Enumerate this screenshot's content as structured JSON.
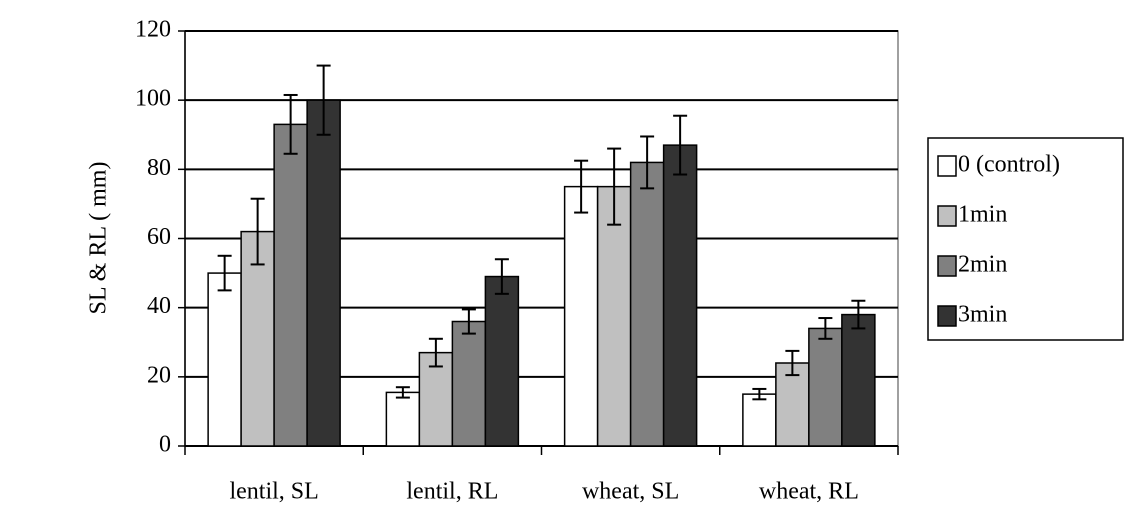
{
  "chart_data": {
    "type": "bar",
    "y_label": "SL & RL ( mm)",
    "categories": [
      "lentil, SL",
      "lentil, RL",
      "wheat, SL",
      "wheat, RL"
    ],
    "series": [
      {
        "name": "0 (control)",
        "color": "#ffffff",
        "values": [
          50,
          15.5,
          75,
          15
        ],
        "errors": [
          5,
          1.5,
          7.5,
          1.5
        ]
      },
      {
        "name": "1min",
        "color": "#c0c0c0",
        "values": [
          62,
          27,
          75,
          24
        ],
        "errors": [
          9.5,
          4,
          11,
          3.5
        ]
      },
      {
        "name": "2min",
        "color": "#808080",
        "values": [
          93,
          36,
          82,
          34
        ],
        "errors": [
          8.5,
          3.5,
          7.5,
          3
        ]
      },
      {
        "name": "3min",
        "color": "#333333",
        "values": [
          100,
          49,
          87,
          38
        ],
        "errors": [
          10,
          5,
          8.5,
          4
        ]
      }
    ],
    "ylim": [
      0,
      120
    ],
    "yticks": [
      0,
      20,
      40,
      60,
      80,
      100,
      120
    ],
    "grid": true,
    "legend": "right"
  }
}
